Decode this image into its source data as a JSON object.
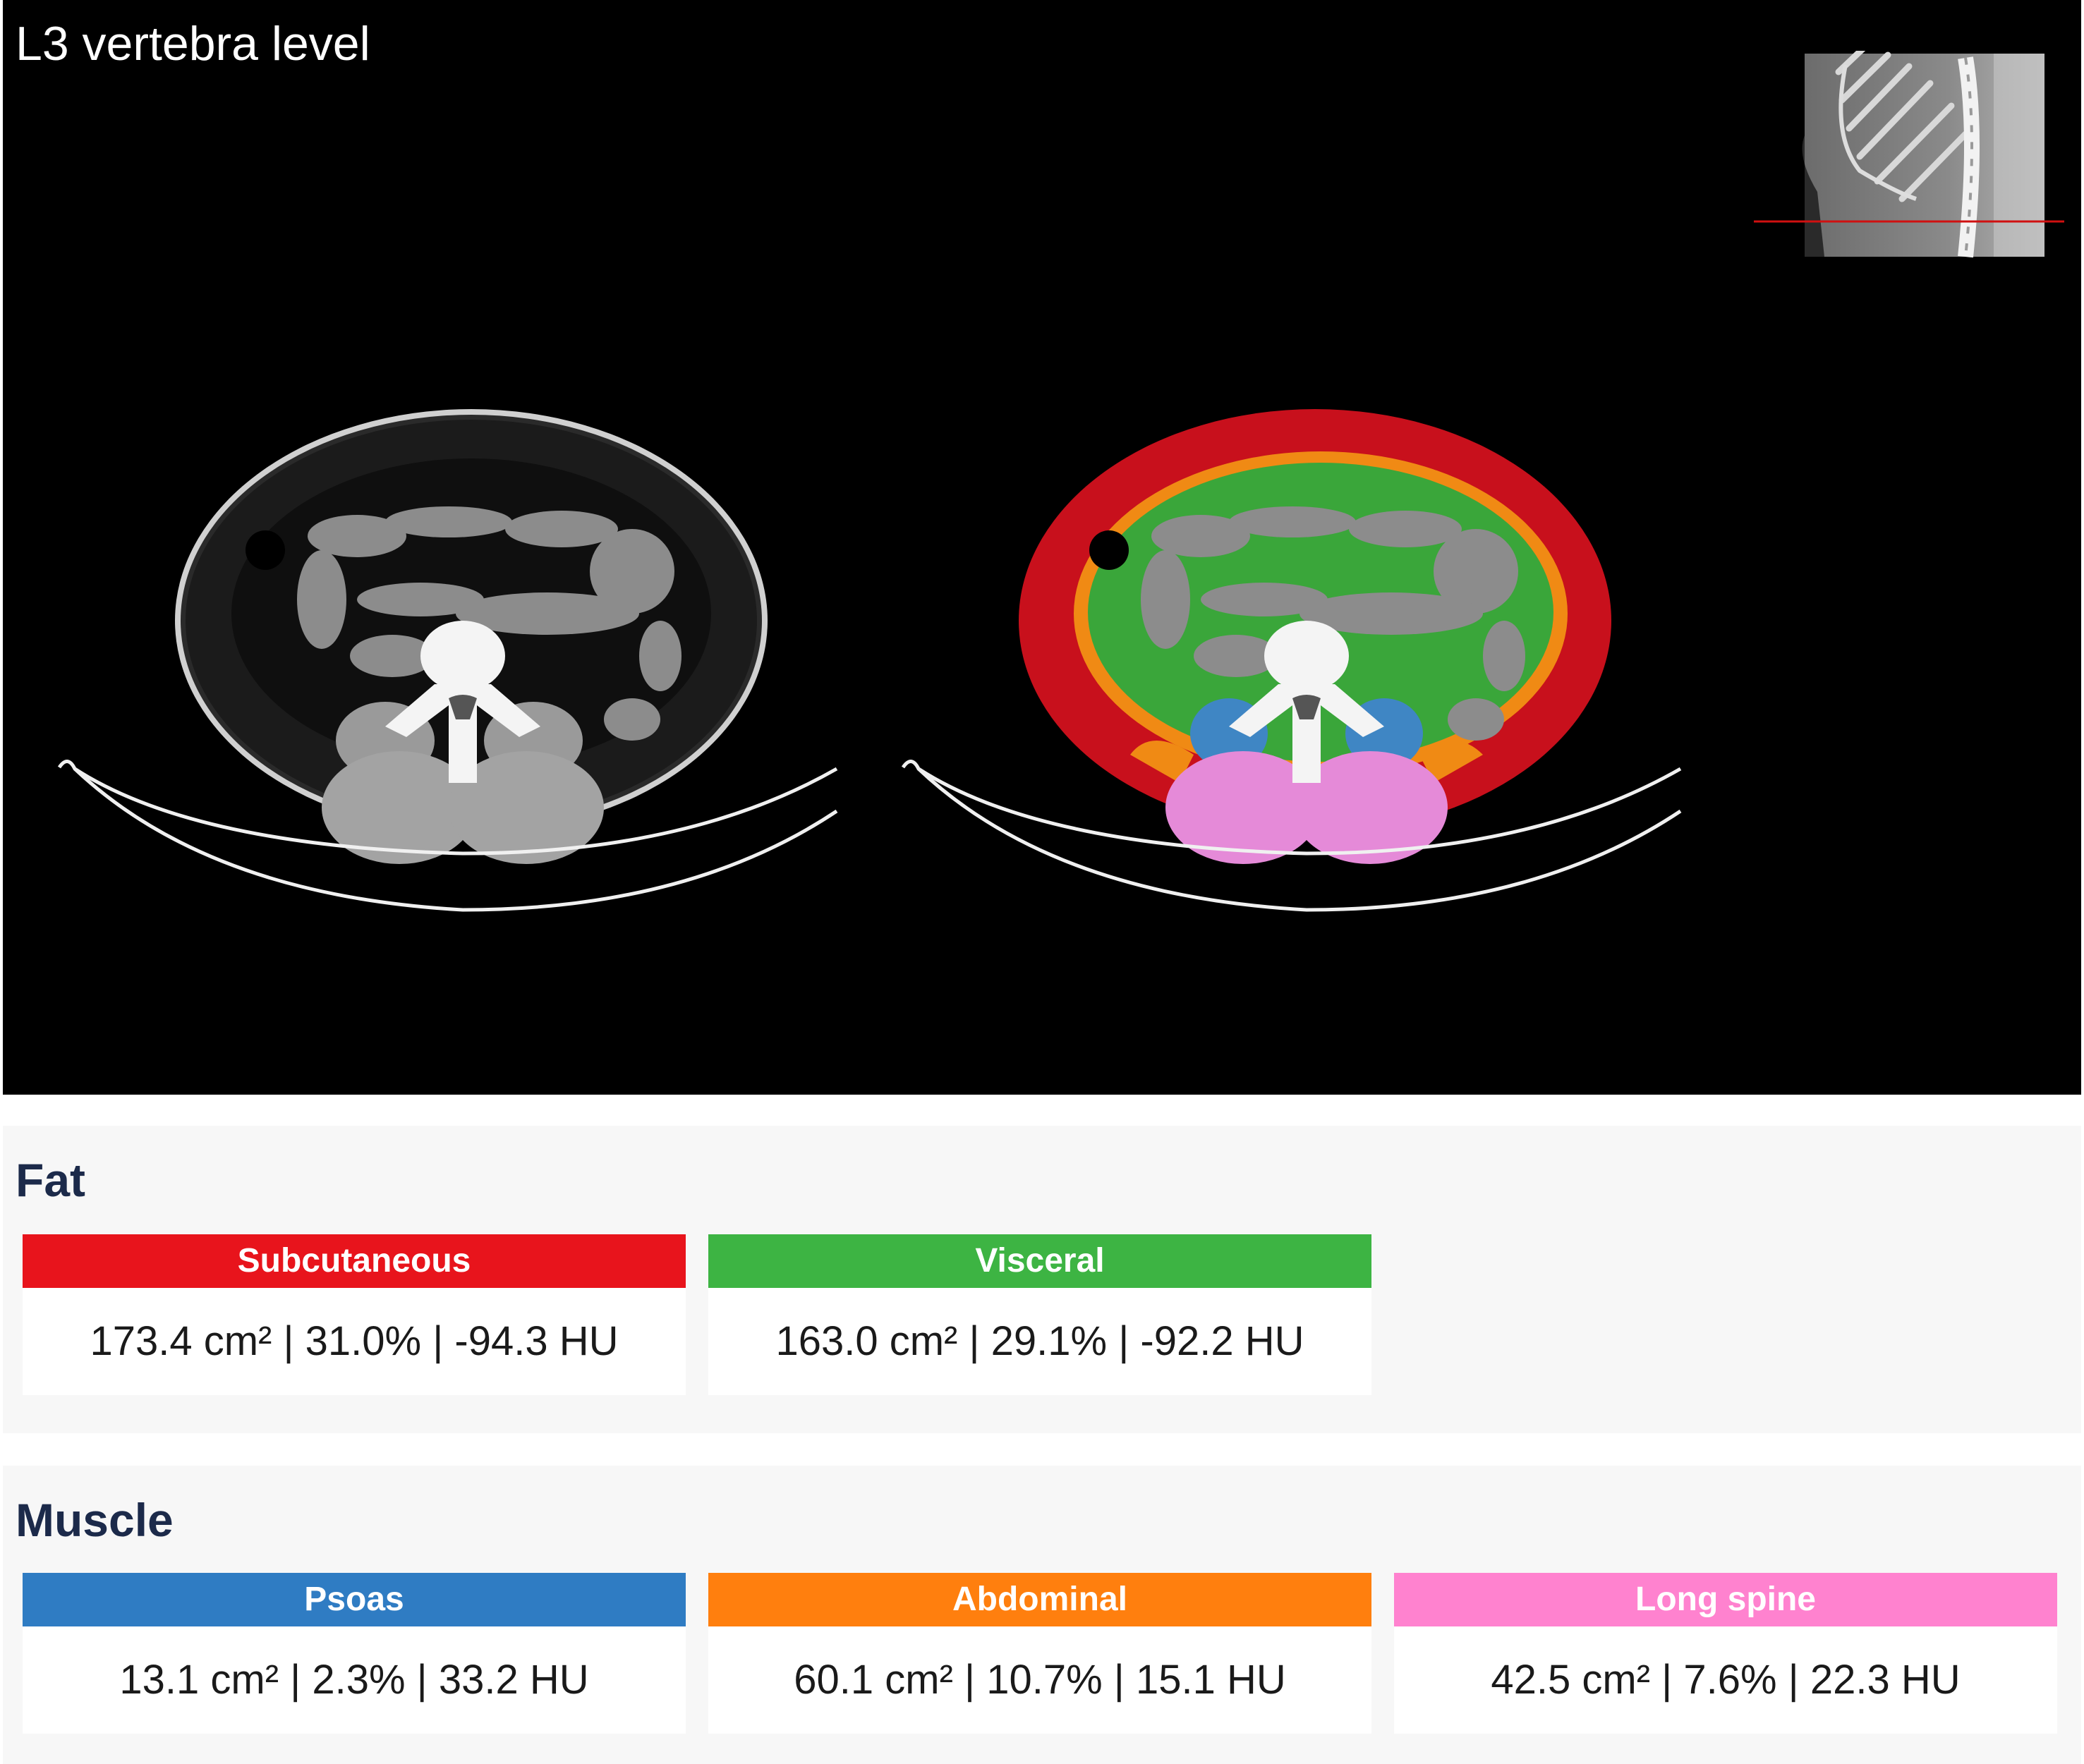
{
  "viewer": {
    "title": "L3 vertebra level"
  },
  "fat": {
    "title": "Fat",
    "cards": [
      {
        "label": "Subcutaneous",
        "value": "173.4 cm² | 31.0% | -94.3 HU",
        "color": "#e8141c"
      },
      {
        "label": "Visceral",
        "value": "163.0 cm² | 29.1% | -92.2 HU",
        "color": "#3db443"
      }
    ]
  },
  "muscle": {
    "title": "Muscle",
    "cards": [
      {
        "label": "Psoas",
        "value": "13.1 cm² | 2.3% | 33.2 HU",
        "color": "#2f7cc3"
      },
      {
        "label": "Abdominal",
        "value": "60.1 cm² | 10.7% | 15.1 HU",
        "color": "#ff7f0e"
      },
      {
        "label": "Long spine",
        "value": "42.5 cm² | 7.6% | 22.3 HU",
        "color": "#ff82cf"
      }
    ]
  },
  "colors": {
    "subcutaneous_overlay": "#c8101c",
    "visceral_overlay": "#3aa63a",
    "abdominal_overlay": "#f08a14",
    "psoas_overlay": "#3f86c4",
    "long_spine_overlay": "#e58ad8",
    "title_text": "#1c2a4a"
  }
}
